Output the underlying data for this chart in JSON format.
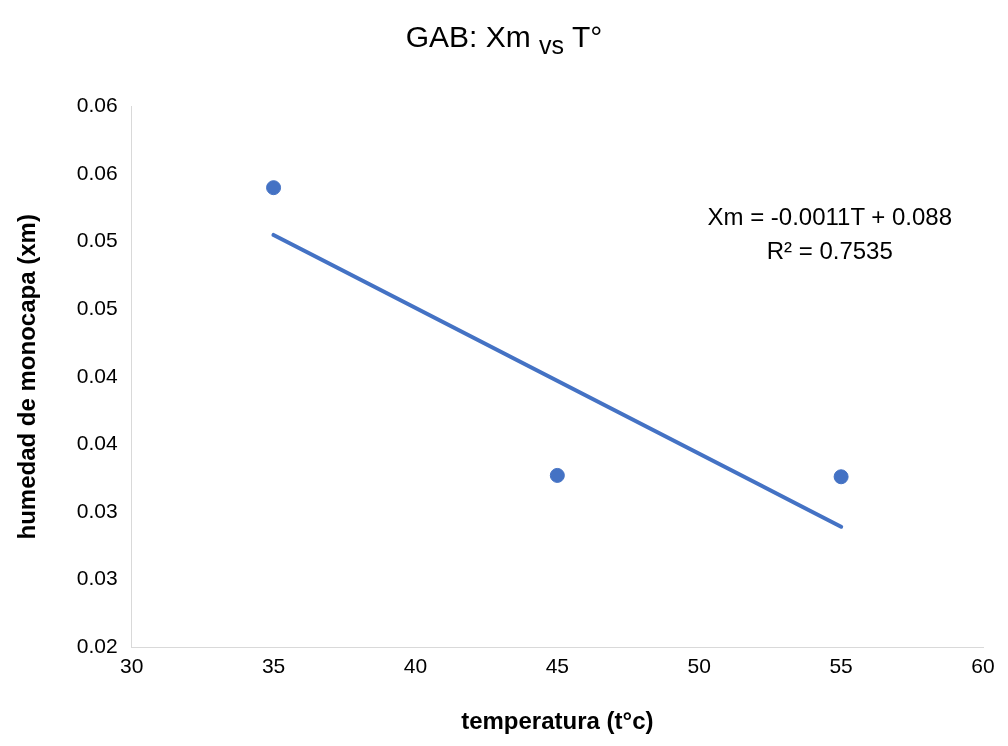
{
  "chart_data": {
    "type": "scatter",
    "title": "GAB: Xm $_{vs}$ T°",
    "xlabel": "temperatura (t°c)",
    "ylabel": "humedad de monocapa (xm)",
    "series": [
      {
        "color": "#4472c4",
        "x": [
          35,
          45,
          55
        ],
        "values": [
          0.054,
          0.0327,
          0.0326
        ]
      },
      {
        "type": "line",
        "marker": "none",
        "color": "#4472c4",
        "x": [
          35,
          55
        ],
        "values": [
          0.0505,
          0.0289
        ]
      }
    ],
    "xlim": [
      30,
      60
    ],
    "xticks": [
      30,
      35,
      40,
      45,
      50,
      55,
      60
    ],
    "ylim": [
      0.02,
      0.06
    ],
    "yticks": [
      0.02,
      {
        "value": 0.025,
        "label": "0.03"
      },
      0.03,
      {
        "value": 0.035,
        "label": "0.04"
      },
      0.04,
      {
        "value": 0.045,
        "label": "0.05"
      },
      0.05,
      {
        "value": 0.055,
        "label": "0.06"
      },
      0.06
    ],
    "annotations": [
      "Xm = -0.0011T + 0.088",
      "R² = 0.7535"
    ],
    "grid": false,
    "legend": false,
    "marker": "circle",
    "line_style": "solid"
  }
}
